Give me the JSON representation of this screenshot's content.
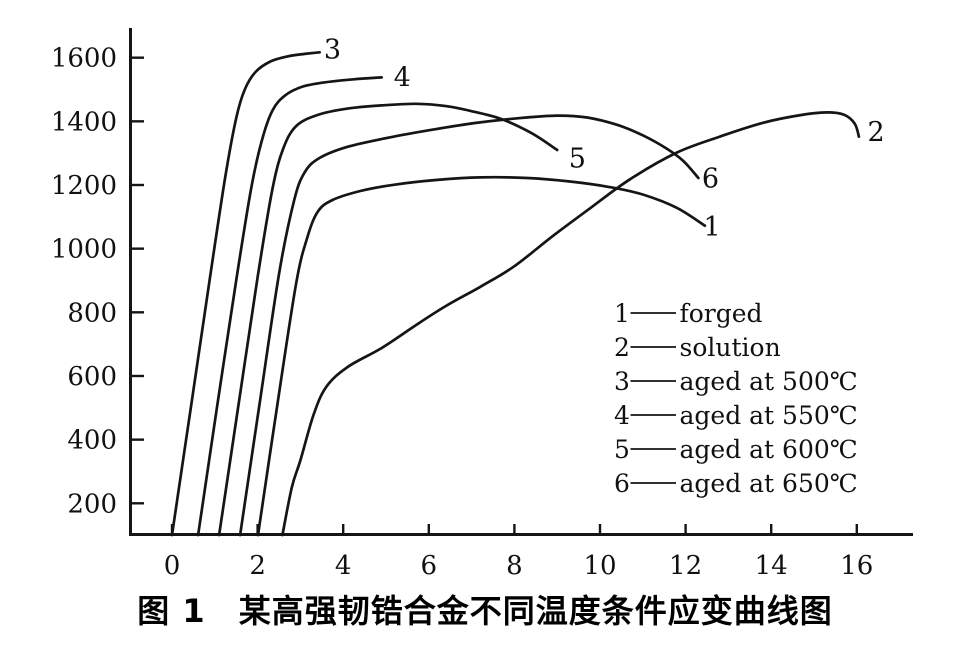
{
  "figure": {
    "caption": "图 1　某高强韧锆合金不同温度条件应变曲线图"
  },
  "colors": {
    "ink": "#151515",
    "text": "#111111",
    "background": "#ffffff"
  },
  "chart_data": {
    "type": "line",
    "title": "图 1　某高强韧锆合金不同温度条件应变曲线图",
    "xlabel": "",
    "ylabel": "",
    "xlim": [
      0,
      16.5
    ],
    "ylim": [
      100,
      1700
    ],
    "x_ticks": [
      0,
      2,
      4,
      6,
      8,
      10,
      12,
      14,
      16
    ],
    "y_ticks": [
      200,
      400,
      600,
      800,
      1000,
      1200,
      1400,
      1600
    ],
    "grid": false,
    "legend_position": "inside lower right",
    "series": [
      {
        "key": "1",
        "name": "forged",
        "label_at": [
          12.62,
          1068
        ],
        "points": [
          [
            2.01,
            100
          ],
          [
            2.45,
            500
          ],
          [
            2.9,
            890
          ],
          [
            3.15,
            1030
          ],
          [
            3.4,
            1115
          ],
          [
            3.75,
            1153
          ],
          [
            4.4,
            1181
          ],
          [
            5.2,
            1201
          ],
          [
            6.2,
            1216
          ],
          [
            7.2,
            1224
          ],
          [
            8.3,
            1222
          ],
          [
            9.3,
            1211
          ],
          [
            10.2,
            1194
          ],
          [
            11.0,
            1170
          ],
          [
            11.8,
            1128
          ],
          [
            12.45,
            1072
          ]
        ]
      },
      {
        "key": "2",
        "name": "solution",
        "label_at": [
          16.45,
          1367
        ],
        "points": [
          [
            2.58,
            100
          ],
          [
            2.8,
            250
          ],
          [
            3.0,
            335
          ],
          [
            3.3,
            475
          ],
          [
            3.6,
            565
          ],
          [
            4.1,
            628
          ],
          [
            4.9,
            688
          ],
          [
            5.7,
            760
          ],
          [
            6.4,
            820
          ],
          [
            7.2,
            880
          ],
          [
            8.0,
            945
          ],
          [
            8.9,
            1040
          ],
          [
            9.8,
            1130
          ],
          [
            10.7,
            1218
          ],
          [
            11.8,
            1302
          ],
          [
            12.8,
            1352
          ],
          [
            13.8,
            1395
          ],
          [
            14.7,
            1420
          ],
          [
            15.3,
            1428
          ],
          [
            15.7,
            1421
          ],
          [
            15.95,
            1393
          ],
          [
            16.05,
            1352
          ]
        ]
      },
      {
        "key": "3",
        "name": "aged at 500℃",
        "label_at": [
          3.75,
          1625
        ],
        "points": [
          [
            0,
            100
          ],
          [
            0.45,
            510
          ],
          [
            0.9,
            920
          ],
          [
            1.25,
            1230
          ],
          [
            1.5,
            1410
          ],
          [
            1.7,
            1500
          ],
          [
            1.95,
            1555
          ],
          [
            2.3,
            1588
          ],
          [
            2.7,
            1604
          ],
          [
            3.1,
            1612
          ],
          [
            3.45,
            1617
          ]
        ]
      },
      {
        "key": "4",
        "name": "aged at 550℃",
        "label_at": [
          5.38,
          1537
        ],
        "points": [
          [
            0.61,
            100
          ],
          [
            1.05,
            500
          ],
          [
            1.5,
            900
          ],
          [
            1.85,
            1190
          ],
          [
            2.1,
            1340
          ],
          [
            2.35,
            1435
          ],
          [
            2.65,
            1482
          ],
          [
            3.05,
            1509
          ],
          [
            3.6,
            1523
          ],
          [
            4.25,
            1532
          ],
          [
            4.9,
            1538
          ]
        ]
      },
      {
        "key": "5",
        "name": "aged at 600℃",
        "label_at": [
          9.47,
          1283
        ],
        "points": [
          [
            1.1,
            100
          ],
          [
            1.55,
            505
          ],
          [
            2.0,
            910
          ],
          [
            2.35,
            1190
          ],
          [
            2.6,
            1315
          ],
          [
            2.9,
            1385
          ],
          [
            3.4,
            1420
          ],
          [
            4.1,
            1440
          ],
          [
            4.9,
            1450
          ],
          [
            5.7,
            1455
          ],
          [
            6.4,
            1448
          ],
          [
            7.0,
            1432
          ],
          [
            7.7,
            1407
          ],
          [
            8.4,
            1363
          ],
          [
            9.0,
            1310
          ]
        ]
      },
      {
        "key": "6",
        "name": "aged at 650℃",
        "label_at": [
          12.58,
          1220
        ],
        "points": [
          [
            1.59,
            100
          ],
          [
            2.05,
            515
          ],
          [
            2.5,
            920
          ],
          [
            2.85,
            1150
          ],
          [
            3.1,
            1240
          ],
          [
            3.45,
            1285
          ],
          [
            4.1,
            1320
          ],
          [
            5.1,
            1350
          ],
          [
            6.1,
            1374
          ],
          [
            7.1,
            1395
          ],
          [
            8.1,
            1410
          ],
          [
            9.0,
            1418
          ],
          [
            9.7,
            1412
          ],
          [
            10.4,
            1389
          ],
          [
            11.0,
            1356
          ],
          [
            11.55,
            1315
          ],
          [
            11.95,
            1275
          ],
          [
            12.3,
            1222
          ]
        ]
      }
    ],
    "legend": [
      {
        "key": "1",
        "label": "forged"
      },
      {
        "key": "2",
        "label": "solution"
      },
      {
        "key": "3",
        "label": "aged at 500℃"
      },
      {
        "key": "4",
        "label": "aged at 550℃"
      },
      {
        "key": "5",
        "label": "aged at 600℃"
      },
      {
        "key": "6",
        "label": "aged at 650℃"
      }
    ]
  }
}
